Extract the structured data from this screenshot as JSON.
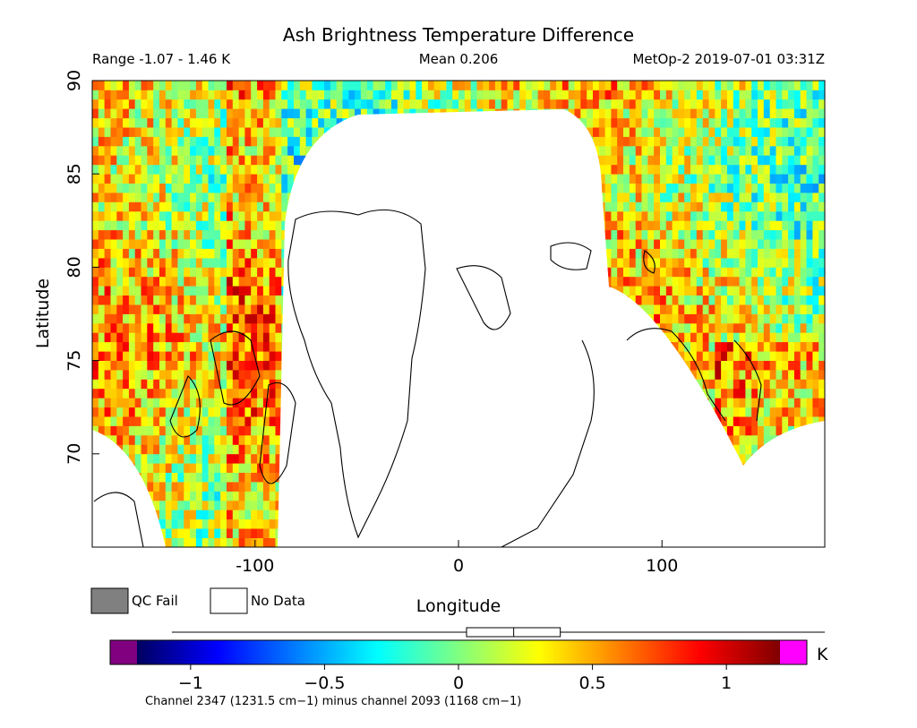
{
  "chart_data": {
    "type": "heatmap",
    "title": "Ash Brightness Temperature Difference",
    "header": {
      "range": "Range -1.07 - 1.46 K",
      "mean": "Mean 0.206",
      "source": "MetOp-2 2019-07-01 03:31Z"
    },
    "xlabel": "Longitude",
    "ylabel": "Latitude",
    "xlim": [
      -180,
      180
    ],
    "ylim": [
      65,
      90
    ],
    "x_ticks": [
      -100,
      0,
      100
    ],
    "y_ticks": [
      70,
      75,
      80,
      85,
      90
    ],
    "range_min": -1.07,
    "range_max": 1.46,
    "mean": 0.206,
    "legend": [
      {
        "label": "QC Fail",
        "color": "#808080"
      },
      {
        "label": "No Data",
        "color": "#ffffff"
      }
    ],
    "colorbar": {
      "min": -1.2,
      "max": 1.2,
      "unit": "K",
      "ticks": [
        -1,
        -0.5,
        0,
        0.5,
        1
      ],
      "tick_labels": [
        "−1",
        "−0.5",
        "0",
        "0.5",
        "1"
      ],
      "under_color": "#800080",
      "over_color": "#ff00ff",
      "stops": [
        "#000060",
        "#0000ff",
        "#0080ff",
        "#00ffff",
        "#80ff80",
        "#ffff00",
        "#ff8000",
        "#ff0000",
        "#800000"
      ],
      "boxplot": {
        "min": -1.07,
        "q1": 0.03,
        "median": 0.206,
        "q3": 0.38,
        "max": 1.46
      }
    },
    "caption": "Channel 2347 (1231.5 cm−1) minus channel 2093 (1168 cm−1)"
  }
}
